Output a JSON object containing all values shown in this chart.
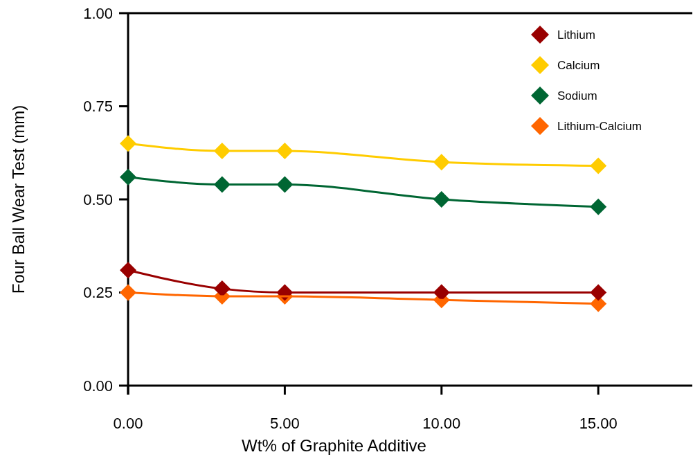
{
  "chart_data": {
    "type": "line",
    "xlabel": "Wt% of Graphite Additive",
    "ylabel": "Four Ball Wear Test (mm)",
    "x": [
      0,
      3,
      5,
      10,
      15
    ],
    "series": [
      {
        "name": "Lithium",
        "color": "#990000",
        "values": [
          0.31,
          0.26,
          0.25,
          0.25,
          0.25
        ]
      },
      {
        "name": "Calcium",
        "color": "#ffcc00",
        "values": [
          0.65,
          0.63,
          0.63,
          0.6,
          0.59
        ]
      },
      {
        "name": "Sodium",
        "color": "#006633",
        "values": [
          0.56,
          0.54,
          0.54,
          0.5,
          0.48
        ]
      },
      {
        "name": "Lithium-Calcium",
        "color": "#ff6600",
        "values": [
          0.25,
          0.24,
          0.24,
          0.23,
          0.22
        ]
      }
    ],
    "xlim": [
      0,
      18
    ],
    "xticks": [
      {
        "value": 0,
        "label": "0.00"
      },
      {
        "value": 5,
        "label": "5.00"
      },
      {
        "value": 10,
        "label": "10.00"
      },
      {
        "value": 15,
        "label": "15.00"
      }
    ],
    "ylim": [
      0,
      1
    ],
    "yticks": [
      {
        "value": 0,
        "label": "0.00"
      },
      {
        "value": 0.25,
        "label": "0.25"
      },
      {
        "value": 0.5,
        "label": "0.50"
      },
      {
        "value": 0.75,
        "label": "0.75"
      },
      {
        "value": 1,
        "label": "1.00"
      }
    ],
    "marker": "diamond",
    "line_style": "solid",
    "grid": false,
    "legend": "top right"
  }
}
